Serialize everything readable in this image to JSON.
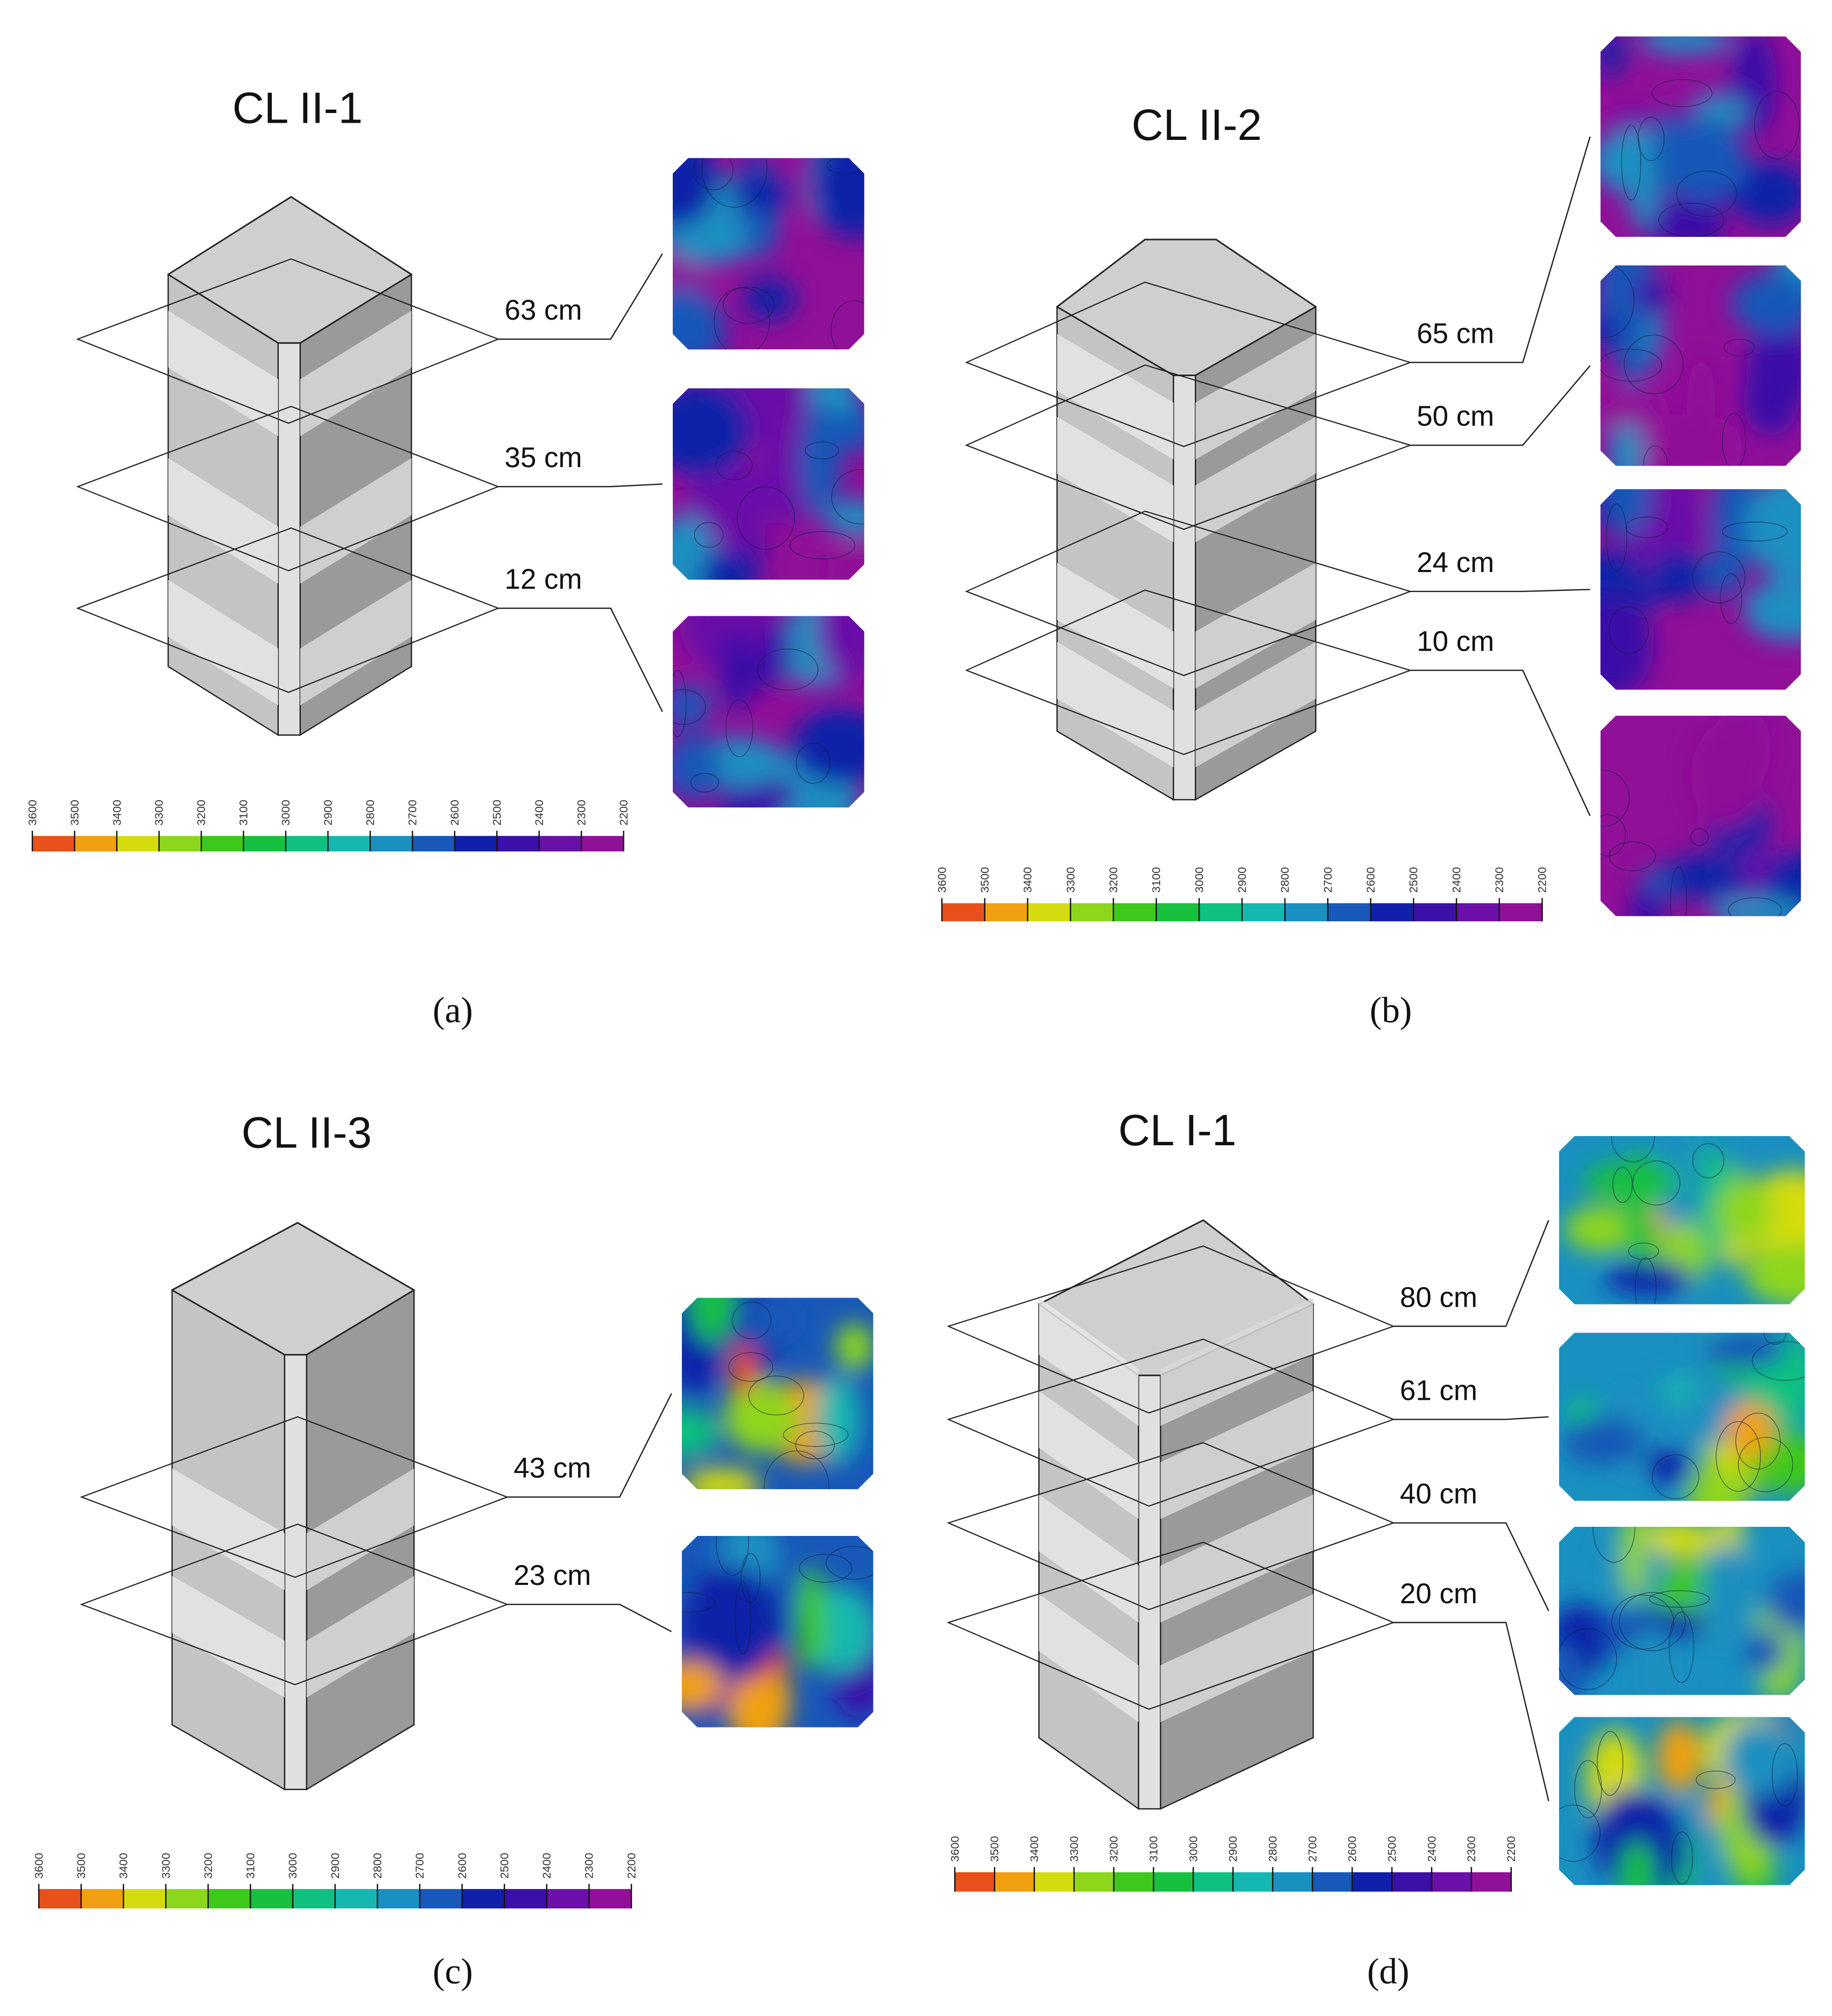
{
  "panels": [
    {
      "title": "CL II-1",
      "levels": [
        "63 cm",
        "35 cm",
        "12 cm"
      ],
      "caption": "(a)",
      "colorbar_labels": [
        "3600",
        "3500",
        "3400",
        "3300",
        "3200",
        "3100",
        "3000",
        "2900",
        "2800",
        "2700",
        "2600",
        "2500",
        "2400",
        "2300",
        "2200"
      ]
    },
    {
      "title": "CL II-2",
      "levels": [
        "65 cm",
        "50 cm",
        "24 cm",
        "10 cm"
      ],
      "caption": "(b)",
      "colorbar_labels": [
        "3600",
        "3500",
        "3400",
        "3300",
        "3200",
        "3100",
        "3000",
        "2900",
        "2800",
        "2700",
        "2600",
        "2500",
        "2400",
        "2300",
        "2200"
      ]
    },
    {
      "title": "CL II-3",
      "levels": [
        "43 cm",
        "23 cm"
      ],
      "caption": "(c)",
      "colorbar_labels": [
        "3600",
        "3500",
        "3400",
        "3300",
        "3200",
        "3100",
        "3000",
        "2900",
        "2800",
        "2700",
        "2600",
        "2500",
        "2400",
        "2300",
        "2200"
      ]
    },
    {
      "title": "CL I-1",
      "levels": [
        "80 cm",
        "61 cm",
        "40 cm",
        "20 cm"
      ],
      "caption": "(d)",
      "colorbar_labels": [
        "3600",
        "3500",
        "3400",
        "3300",
        "3200",
        "3100",
        "3000",
        "2900",
        "2800",
        "2700",
        "2600",
        "2500",
        "2400",
        "2300",
        "2200"
      ]
    }
  ],
  "colorbar_colors": [
    "#e8501c",
    "#f0a010",
    "#d4dc10",
    "#8ed61c",
    "#3ec81c",
    "#18c040",
    "#10c080",
    "#14b8b0",
    "#1a90c0",
    "#1858b8",
    "#1020a8",
    "#3a10a8",
    "#6a10a8",
    "#901098"
  ]
}
